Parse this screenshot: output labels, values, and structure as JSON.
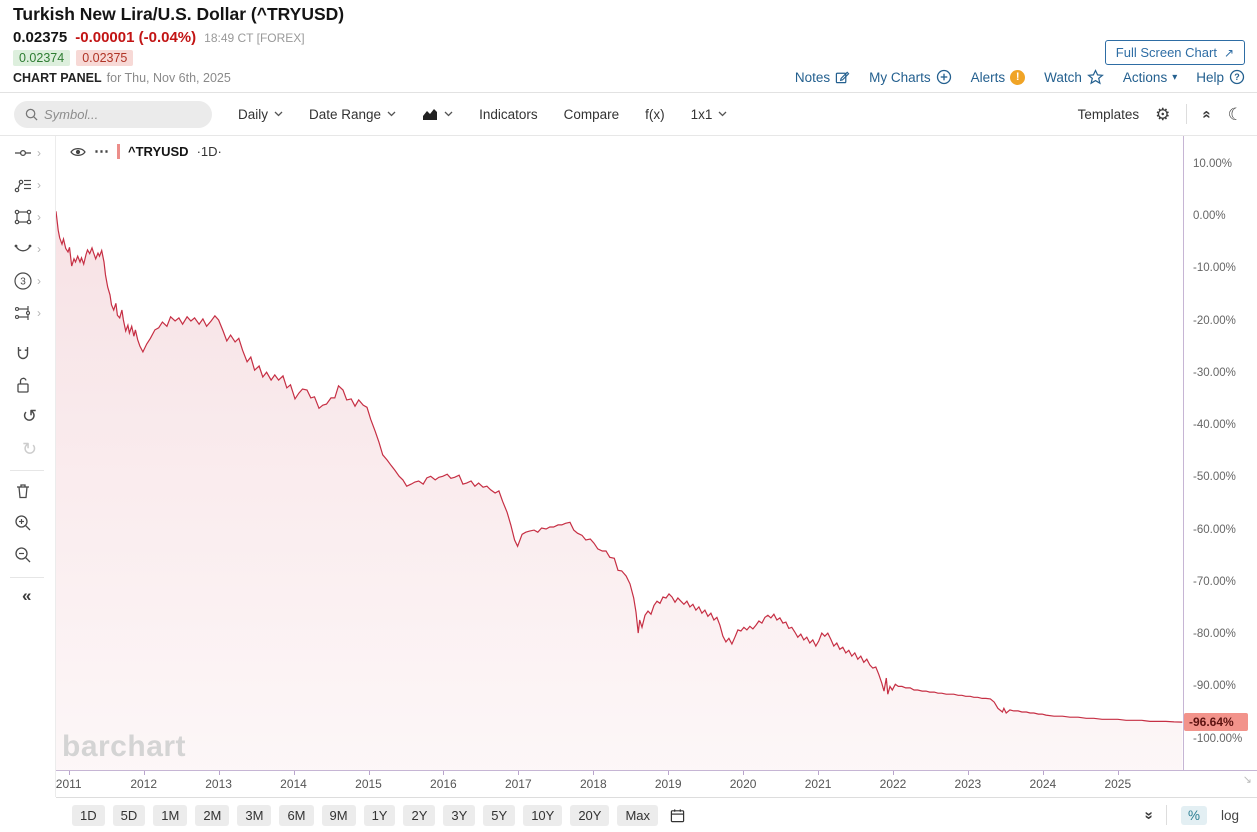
{
  "header": {
    "title": "Turkish New Lira/U.S. Dollar (^TRYUSD)",
    "last_price": "0.02375",
    "change": "-0.00001 (-0.04%)",
    "quote_time": "18:49 CT [FOREX]",
    "bid": "0.02374",
    "ask": "0.02375",
    "panel_label": "CHART PANEL",
    "panel_date": "for Thu, Nov 6th, 2025",
    "fullscreen_label": "Full Screen Chart",
    "links": {
      "notes": "Notes",
      "my_charts": "My Charts",
      "alerts": "Alerts",
      "watch": "Watch",
      "actions": "Actions",
      "help": "Help"
    }
  },
  "toolbar": {
    "search_placeholder": "Symbol...",
    "period_label": "Daily",
    "date_range_label": "Date Range",
    "indicators_label": "Indicators",
    "compare_label": "Compare",
    "fx_label": "f(x)",
    "layout_label": "1x1",
    "templates_label": "Templates"
  },
  "legend": {
    "symbol": "^TRYUSD",
    "interval": "·1D·"
  },
  "watermark": "barchart",
  "bottom_bar": {
    "ranges": [
      "1D",
      "5D",
      "1M",
      "2M",
      "3M",
      "6M",
      "9M",
      "1Y",
      "2Y",
      "3Y",
      "5Y",
      "10Y",
      "20Y",
      "Max"
    ],
    "percent_label": "%",
    "log_label": "log"
  },
  "colors": {
    "line": "#c62f44",
    "link_blue": "#24608f",
    "last_label_bg": "#f2938b",
    "last_label_text": "#5c1210",
    "bid_green": "#2e7d32",
    "ask_red": "#b03426"
  },
  "chart_data": {
    "type": "area",
    "title": "Turkish New Lira/U.S. Dollar (^TRYUSD)",
    "series_name": "^TRYUSD",
    "interval": "1D",
    "scale": "percent-change",
    "grid": false,
    "legend_position": "top-left",
    "xlim": [
      2010.83,
      2025.87
    ],
    "ylim_top": 15.5,
    "ylim_bottom": -105.8,
    "x_ticks": [
      2011,
      2012,
      2013,
      2014,
      2015,
      2016,
      2017,
      2018,
      2019,
      2020,
      2021,
      2022,
      2023,
      2024,
      2025
    ],
    "y_ticks": [
      {
        "label": "10.00%",
        "value": 10
      },
      {
        "label": "0.00%",
        "value": 0
      },
      {
        "label": "-10.00%",
        "value": -10
      },
      {
        "label": "-20.00%",
        "value": -20
      },
      {
        "label": "-30.00%",
        "value": -30
      },
      {
        "label": "-40.00%",
        "value": -40
      },
      {
        "label": "-50.00%",
        "value": -50
      },
      {
        "label": "-60.00%",
        "value": -60
      },
      {
        "label": "-70.00%",
        "value": -70
      },
      {
        "label": "-80.00%",
        "value": -80
      },
      {
        "label": "-90.00%",
        "value": -90
      },
      {
        "label": "-100.00%",
        "value": -100
      }
    ],
    "last_value": -96.64,
    "last_value_label": "-96.64%",
    "points": [
      [
        2010.83,
        1.1
      ],
      [
        2010.86,
        -2.5
      ],
      [
        2010.88,
        -4.0
      ],
      [
        2010.91,
        -5.2
      ],
      [
        2010.93,
        -4.2
      ],
      [
        2010.96,
        -6.0
      ],
      [
        2010.99,
        -6.7
      ],
      [
        2011.01,
        -5.8
      ],
      [
        2011.04,
        -9.4
      ],
      [
        2011.07,
        -8.0
      ],
      [
        2011.09,
        -8.6
      ],
      [
        2011.12,
        -7.5
      ],
      [
        2011.15,
        -8.6
      ],
      [
        2011.17,
        -7.8
      ],
      [
        2011.2,
        -9.0
      ],
      [
        2011.23,
        -7.2
      ],
      [
        2011.25,
        -6.3
      ],
      [
        2011.28,
        -7.0
      ],
      [
        2011.31,
        -5.9
      ],
      [
        2011.33,
        -6.8
      ],
      [
        2011.36,
        -8.0
      ],
      [
        2011.39,
        -6.9
      ],
      [
        2011.41,
        -7.5
      ],
      [
        2011.44,
        -6.4
      ],
      [
        2011.47,
        -8.6
      ],
      [
        2011.49,
        -11.1
      ],
      [
        2011.52,
        -13.4
      ],
      [
        2011.55,
        -14.9
      ],
      [
        2011.57,
        -16.8
      ],
      [
        2011.6,
        -17.8
      ],
      [
        2011.63,
        -16.5
      ],
      [
        2011.65,
        -18.8
      ],
      [
        2011.68,
        -19.3
      ],
      [
        2011.71,
        -17.8
      ],
      [
        2011.73,
        -19.7
      ],
      [
        2011.76,
        -21.8
      ],
      [
        2011.79,
        -20.7
      ],
      [
        2011.81,
        -22.2
      ],
      [
        2011.84,
        -20.9
      ],
      [
        2011.87,
        -22.8
      ],
      [
        2011.89,
        -21.6
      ],
      [
        2011.92,
        -23.5
      ],
      [
        2011.95,
        -24.7
      ],
      [
        2011.99,
        -25.8
      ],
      [
        2012.04,
        -24.3
      ],
      [
        2012.09,
        -23.2
      ],
      [
        2012.15,
        -21.6
      ],
      [
        2012.2,
        -21.2
      ],
      [
        2012.25,
        -20.1
      ],
      [
        2012.31,
        -20.9
      ],
      [
        2012.36,
        -19.1
      ],
      [
        2012.42,
        -19.9
      ],
      [
        2012.47,
        -19.3
      ],
      [
        2012.52,
        -20.5
      ],
      [
        2012.58,
        -19.1
      ],
      [
        2012.63,
        -19.9
      ],
      [
        2012.68,
        -19.3
      ],
      [
        2012.74,
        -20.5
      ],
      [
        2012.79,
        -19.5
      ],
      [
        2012.84,
        -20.9
      ],
      [
        2012.9,
        -19.9
      ],
      [
        2012.95,
        -18.9
      ],
      [
        2013.0,
        -19.7
      ],
      [
        2013.06,
        -21.8
      ],
      [
        2013.11,
        -23.7
      ],
      [
        2013.16,
        -22.6
      ],
      [
        2013.22,
        -23.9
      ],
      [
        2013.27,
        -23.2
      ],
      [
        2013.32,
        -25.5
      ],
      [
        2013.38,
        -27.7
      ],
      [
        2013.43,
        -26.8
      ],
      [
        2013.48,
        -29.3
      ],
      [
        2013.54,
        -28.5
      ],
      [
        2013.59,
        -30.6
      ],
      [
        2013.64,
        -29.7
      ],
      [
        2013.7,
        -31.2
      ],
      [
        2013.75,
        -30.2
      ],
      [
        2013.8,
        -31.2
      ],
      [
        2013.86,
        -30.4
      ],
      [
        2013.91,
        -32.7
      ],
      [
        2013.96,
        -32.1
      ],
      [
        2014.02,
        -34.8
      ],
      [
        2014.07,
        -33.7
      ],
      [
        2014.12,
        -32.9
      ],
      [
        2014.18,
        -33.1
      ],
      [
        2014.23,
        -34.6
      ],
      [
        2014.28,
        -34.4
      ],
      [
        2014.34,
        -36.6
      ],
      [
        2014.39,
        -36.0
      ],
      [
        2014.44,
        -35.8
      ],
      [
        2014.5,
        -34.6
      ],
      [
        2014.55,
        -34.6
      ],
      [
        2014.6,
        -32.3
      ],
      [
        2014.66,
        -33.1
      ],
      [
        2014.71,
        -35.0
      ],
      [
        2014.77,
        -34.8
      ],
      [
        2014.82,
        -36.2
      ],
      [
        2014.87,
        -35.0
      ],
      [
        2014.93,
        -36.0
      ],
      [
        2014.98,
        -36.4
      ],
      [
        2015.03,
        -38.7
      ],
      [
        2015.09,
        -41.0
      ],
      [
        2015.14,
        -43.1
      ],
      [
        2015.19,
        -45.5
      ],
      [
        2015.25,
        -46.5
      ],
      [
        2015.3,
        -47.5
      ],
      [
        2015.35,
        -48.4
      ],
      [
        2015.41,
        -49.6
      ],
      [
        2015.46,
        -50.3
      ],
      [
        2015.51,
        -51.5
      ],
      [
        2015.57,
        -51.1
      ],
      [
        2015.62,
        -50.7
      ],
      [
        2015.67,
        -50.5
      ],
      [
        2015.73,
        -51.1
      ],
      [
        2015.78,
        -49.9
      ],
      [
        2015.83,
        -49.6
      ],
      [
        2015.89,
        -50.3
      ],
      [
        2015.94,
        -49.8
      ],
      [
        2015.99,
        -49.6
      ],
      [
        2016.05,
        -49.2
      ],
      [
        2016.1,
        -50.0
      ],
      [
        2016.15,
        -49.8
      ],
      [
        2016.21,
        -49.4
      ],
      [
        2016.26,
        -51.1
      ],
      [
        2016.31,
        -50.9
      ],
      [
        2016.37,
        -50.5
      ],
      [
        2016.42,
        -51.5
      ],
      [
        2016.47,
        -50.9
      ],
      [
        2016.53,
        -51.7
      ],
      [
        2016.58,
        -51.5
      ],
      [
        2016.63,
        -52.2
      ],
      [
        2016.69,
        -52.8
      ],
      [
        2016.74,
        -52.4
      ],
      [
        2016.79,
        -54.4
      ],
      [
        2016.85,
        -56.5
      ],
      [
        2016.9,
        -58.9
      ],
      [
        2016.95,
        -61.8
      ],
      [
        2016.99,
        -63.0
      ],
      [
        2017.05,
        -60.7
      ],
      [
        2017.1,
        -60.3
      ],
      [
        2017.15,
        -60.1
      ],
      [
        2017.21,
        -59.9
      ],
      [
        2017.26,
        -60.3
      ],
      [
        2017.31,
        -59.5
      ],
      [
        2017.37,
        -59.7
      ],
      [
        2017.42,
        -59.3
      ],
      [
        2017.47,
        -59.3
      ],
      [
        2017.53,
        -58.9
      ],
      [
        2017.58,
        -58.9
      ],
      [
        2017.63,
        -58.6
      ],
      [
        2017.69,
        -58.4
      ],
      [
        2017.74,
        -59.9
      ],
      [
        2017.79,
        -60.5
      ],
      [
        2017.85,
        -60.9
      ],
      [
        2017.9,
        -61.8
      ],
      [
        2017.96,
        -61.6
      ],
      [
        2018.01,
        -62.4
      ],
      [
        2018.06,
        -63.5
      ],
      [
        2018.12,
        -63.9
      ],
      [
        2018.17,
        -63.9
      ],
      [
        2018.22,
        -65.1
      ],
      [
        2018.28,
        -65.3
      ],
      [
        2018.33,
        -67.6
      ],
      [
        2018.38,
        -67.7
      ],
      [
        2018.44,
        -68.7
      ],
      [
        2018.49,
        -70.2
      ],
      [
        2018.54,
        -72.9
      ],
      [
        2018.57,
        -75.6
      ],
      [
        2018.6,
        -79.6
      ],
      [
        2018.62,
        -77.1
      ],
      [
        2018.65,
        -78.5
      ],
      [
        2018.69,
        -76.2
      ],
      [
        2018.73,
        -75.4
      ],
      [
        2018.77,
        -76.0
      ],
      [
        2018.81,
        -74.3
      ],
      [
        2018.85,
        -73.5
      ],
      [
        2018.89,
        -73.9
      ],
      [
        2018.93,
        -72.7
      ],
      [
        2018.97,
        -72.9
      ],
      [
        2019.01,
        -72.1
      ],
      [
        2019.05,
        -72.7
      ],
      [
        2019.09,
        -73.7
      ],
      [
        2019.13,
        -72.9
      ],
      [
        2019.17,
        -73.5
      ],
      [
        2019.21,
        -74.1
      ],
      [
        2019.25,
        -73.5
      ],
      [
        2019.29,
        -74.6
      ],
      [
        2019.33,
        -74.1
      ],
      [
        2019.37,
        -75.2
      ],
      [
        2019.41,
        -74.6
      ],
      [
        2019.45,
        -75.8
      ],
      [
        2019.49,
        -75.2
      ],
      [
        2019.53,
        -76.4
      ],
      [
        2019.57,
        -75.8
      ],
      [
        2019.61,
        -77.1
      ],
      [
        2019.65,
        -76.6
      ],
      [
        2019.69,
        -78.1
      ],
      [
        2019.73,
        -80.2
      ],
      [
        2019.77,
        -81.3
      ],
      [
        2019.81,
        -80.6
      ],
      [
        2019.85,
        -81.7
      ],
      [
        2019.89,
        -80.4
      ],
      [
        2019.93,
        -79.0
      ],
      [
        2019.97,
        -79.2
      ],
      [
        2020.01,
        -78.5
      ],
      [
        2020.05,
        -79.0
      ],
      [
        2020.09,
        -78.3
      ],
      [
        2020.13,
        -78.8
      ],
      [
        2020.17,
        -78.1
      ],
      [
        2020.21,
        -77.3
      ],
      [
        2020.25,
        -77.7
      ],
      [
        2020.29,
        -76.6
      ],
      [
        2020.33,
        -76.2
      ],
      [
        2020.37,
        -76.7
      ],
      [
        2020.41,
        -76.0
      ],
      [
        2020.45,
        -77.1
      ],
      [
        2020.49,
        -76.7
      ],
      [
        2020.53,
        -77.7
      ],
      [
        2020.57,
        -77.5
      ],
      [
        2020.61,
        -78.7
      ],
      [
        2020.65,
        -78.5
      ],
      [
        2020.69,
        -79.4
      ],
      [
        2020.73,
        -80.4
      ],
      [
        2020.77,
        -79.8
      ],
      [
        2020.81,
        -80.9
      ],
      [
        2020.85,
        -80.4
      ],
      [
        2020.89,
        -81.5
      ],
      [
        2020.93,
        -80.9
      ],
      [
        2020.97,
        -82.1
      ],
      [
        2021.01,
        -81.1
      ],
      [
        2021.05,
        -79.6
      ],
      [
        2021.09,
        -80.2
      ],
      [
        2021.13,
        -79.6
      ],
      [
        2021.17,
        -80.8
      ],
      [
        2021.21,
        -82.1
      ],
      [
        2021.25,
        -81.5
      ],
      [
        2021.29,
        -82.7
      ],
      [
        2021.33,
        -82.3
      ],
      [
        2021.37,
        -83.4
      ],
      [
        2021.41,
        -82.9
      ],
      [
        2021.45,
        -84.0
      ],
      [
        2021.49,
        -83.4
      ],
      [
        2021.53,
        -84.6
      ],
      [
        2021.57,
        -84.0
      ],
      [
        2021.61,
        -85.2
      ],
      [
        2021.65,
        -84.6
      ],
      [
        2021.69,
        -85.7
      ],
      [
        2021.73,
        -86.3
      ],
      [
        2021.77,
        -86.1
      ],
      [
        2021.81,
        -87.5
      ],
      [
        2021.85,
        -89.2
      ],
      [
        2021.88,
        -90.7
      ],
      [
        2021.91,
        -88.2
      ],
      [
        2021.93,
        -91.3
      ],
      [
        2021.96,
        -89.8
      ],
      [
        2021.99,
        -90.5
      ],
      [
        2022.03,
        -89.4
      ],
      [
        2022.07,
        -89.8
      ],
      [
        2022.12,
        -89.8
      ],
      [
        2022.17,
        -90.1
      ],
      [
        2022.23,
        -90.1
      ],
      [
        2022.28,
        -90.5
      ],
      [
        2022.33,
        -90.5
      ],
      [
        2022.39,
        -90.7
      ],
      [
        2022.44,
        -90.7
      ],
      [
        2022.49,
        -90.9
      ],
      [
        2022.55,
        -90.9
      ],
      [
        2022.6,
        -91.1
      ],
      [
        2022.65,
        -91.1
      ],
      [
        2022.71,
        -91.3
      ],
      [
        2022.76,
        -91.3
      ],
      [
        2022.81,
        -91.3
      ],
      [
        2022.87,
        -91.5
      ],
      [
        2022.92,
        -91.5
      ],
      [
        2022.97,
        -91.7
      ],
      [
        2023.03,
        -91.7
      ],
      [
        2023.08,
        -91.9
      ],
      [
        2023.13,
        -91.9
      ],
      [
        2023.19,
        -92.1
      ],
      [
        2023.24,
        -92.1
      ],
      [
        2023.3,
        -92.2
      ],
      [
        2023.35,
        -92.8
      ],
      [
        2023.4,
        -94.0
      ],
      [
        2023.46,
        -94.7
      ],
      [
        2023.48,
        -94.0
      ],
      [
        2023.51,
        -94.9
      ],
      [
        2023.56,
        -94.3
      ],
      [
        2023.61,
        -94.5
      ],
      [
        2023.67,
        -94.5
      ],
      [
        2023.72,
        -94.7
      ],
      [
        2023.78,
        -94.7
      ],
      [
        2023.83,
        -94.9
      ],
      [
        2023.88,
        -94.9
      ],
      [
        2023.94,
        -95.1
      ],
      [
        2023.99,
        -95.1
      ],
      [
        2024.04,
        -95.3
      ],
      [
        2024.15,
        -95.5
      ],
      [
        2024.26,
        -95.5
      ],
      [
        2024.36,
        -95.7
      ],
      [
        2024.47,
        -95.7
      ],
      [
        2024.58,
        -95.9
      ],
      [
        2024.68,
        -95.9
      ],
      [
        2024.79,
        -96.1
      ],
      [
        2024.9,
        -96.1
      ],
      [
        2025.0,
        -96.1
      ],
      [
        2025.11,
        -96.3
      ],
      [
        2025.22,
        -96.3
      ],
      [
        2025.32,
        -96.3
      ],
      [
        2025.43,
        -96.5
      ],
      [
        2025.54,
        -96.5
      ],
      [
        2025.64,
        -96.5
      ],
      [
        2025.75,
        -96.6
      ],
      [
        2025.86,
        -96.64
      ]
    ]
  }
}
